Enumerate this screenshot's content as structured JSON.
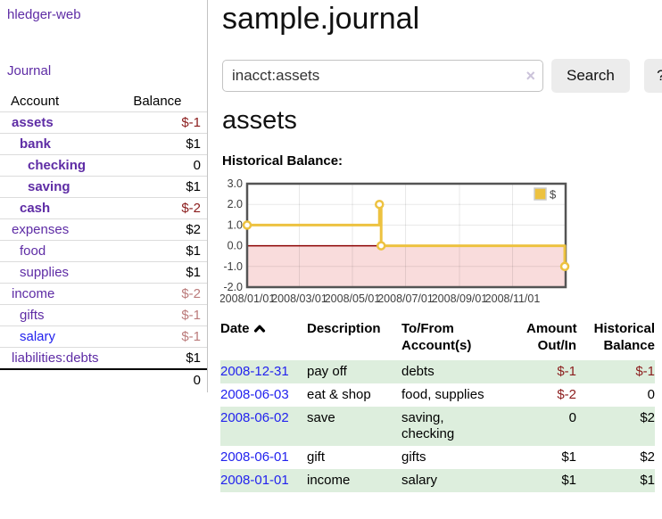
{
  "header": {
    "title": "sample.journal"
  },
  "sidebar": {
    "brand": "hledger-web",
    "journal_label": "Journal",
    "accounts_table": {
      "headers": {
        "account": "Account",
        "balance": "Balance"
      },
      "rows": [
        {
          "name": "assets",
          "depth": 1,
          "bold": true,
          "link": "visited",
          "balance": "$-1",
          "balance_style": "neg-strong"
        },
        {
          "name": "bank",
          "depth": 2,
          "bold": true,
          "link": "visited",
          "balance": "$1",
          "balance_style": "pos"
        },
        {
          "name": "checking",
          "depth": 3,
          "bold": true,
          "link": "visited",
          "balance": "0",
          "balance_style": "pos"
        },
        {
          "name": "saving",
          "depth": 3,
          "bold": true,
          "link": "visited",
          "balance": "$1",
          "balance_style": "pos"
        },
        {
          "name": "cash",
          "depth": 2,
          "bold": true,
          "link": "visited",
          "balance": "$-2",
          "balance_style": "neg-strong"
        },
        {
          "name": "expenses",
          "depth": 1,
          "bold": false,
          "link": "visited",
          "balance": "$2",
          "balance_style": "pos"
        },
        {
          "name": "food",
          "depth": 2,
          "bold": false,
          "link": "visited",
          "balance": "$1",
          "balance_style": "pos"
        },
        {
          "name": "supplies",
          "depth": 2,
          "bold": false,
          "link": "visited",
          "balance": "$1",
          "balance_style": "pos"
        },
        {
          "name": "income",
          "depth": 1,
          "bold": false,
          "link": "visited",
          "balance": "$-2",
          "balance_style": "neg-soft"
        },
        {
          "name": "gifts",
          "depth": 2,
          "bold": false,
          "link": "visited",
          "balance": "$-1",
          "balance_style": "neg-soft"
        },
        {
          "name": "salary",
          "depth": 2,
          "bold": false,
          "link": "unvisited",
          "balance": "$-1",
          "balance_style": "neg-soft"
        },
        {
          "name": "liabilities:debts",
          "depth": 1,
          "bold": false,
          "link": "visited",
          "balance": "$1",
          "balance_style": "pos"
        }
      ],
      "total": "0"
    }
  },
  "search": {
    "query": "inacct:assets",
    "clear_icon": "×",
    "search_label": "Search",
    "help_label": "?"
  },
  "account_page": {
    "heading": "assets",
    "chart_title": "Historical Balance:"
  },
  "chart_data": {
    "type": "line",
    "step": true,
    "title": "Historical Balance:",
    "series": [
      {
        "name": "$",
        "points": [
          [
            "2008-01-01",
            1.0
          ],
          [
            "2008-06-01",
            2.0
          ],
          [
            "2008-06-03",
            0.0
          ],
          [
            "2008-12-31",
            -1.0
          ]
        ]
      }
    ],
    "x_range": [
      "2008-01-01",
      "2009-01-01"
    ],
    "x_ticks": [
      "2008/01/01",
      "2008/03/01",
      "2008/05/01",
      "2008/07/01",
      "2008/09/01",
      "2008/11/01"
    ],
    "y_ticks": [
      "3.0",
      "2.0",
      "1.0",
      "0.0",
      "-1.0",
      "-2.0"
    ],
    "ylim": [
      -2,
      3
    ],
    "grid": true,
    "legend": {
      "label": "$",
      "position": "top-right"
    },
    "colors": {
      "line": "#edc240",
      "marker_fill": "#ffffff",
      "negative_region": "#f9dcdc",
      "zero_line": "#8b0000",
      "border": "#545454",
      "tick_text": "#3d3d3d"
    }
  },
  "register": {
    "headers": [
      {
        "line1": "Date",
        "sorted": "asc"
      },
      {
        "line1": "Description"
      },
      {
        "line1": "To/From",
        "line2": "Account(s)"
      },
      {
        "line1": "Amount",
        "line2": "Out/In"
      },
      {
        "line1": "Historical",
        "line2": "Balance"
      }
    ],
    "rows": [
      {
        "date": "2008-12-31",
        "description": "pay off",
        "accounts": "debts",
        "amount": "$-1",
        "amount_neg": true,
        "balance": "$-1",
        "balance_neg": true,
        "shaded": true
      },
      {
        "date": "2008-06-03",
        "description": "eat & shop",
        "accounts": "food, supplies",
        "amount": "$-2",
        "amount_neg": true,
        "balance": "0",
        "balance_neg": false,
        "shaded": false
      },
      {
        "date": "2008-06-02",
        "description": "save",
        "accounts": "saving, checking",
        "amount": "0",
        "amount_neg": false,
        "balance": "$2",
        "balance_neg": false,
        "shaded": true
      },
      {
        "date": "2008-06-01",
        "description": "gift",
        "accounts": "gifts",
        "amount": "$1",
        "amount_neg": false,
        "balance": "$2",
        "balance_neg": false,
        "shaded": false
      },
      {
        "date": "2008-01-01",
        "description": "income",
        "accounts": "salary",
        "amount": "$1",
        "amount_neg": false,
        "balance": "$1",
        "balance_neg": false,
        "shaded": true
      }
    ]
  }
}
